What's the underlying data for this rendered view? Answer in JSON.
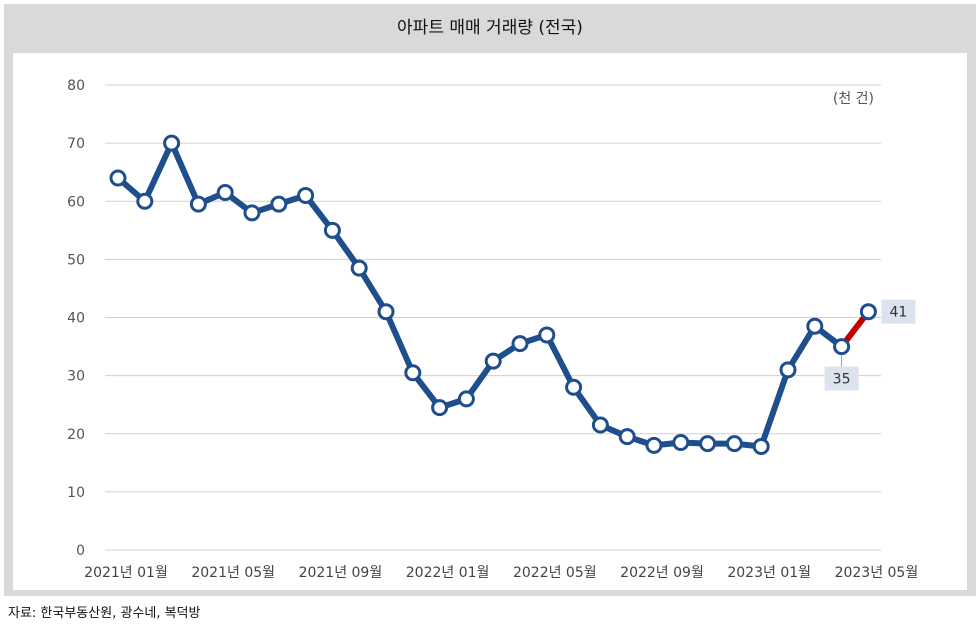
{
  "title": "아파트 매매 거래량 (전국)",
  "source": "자료: 한국부동산원, 광수네, 복덕방",
  "chart_data": {
    "type": "line",
    "title": "아파트 매매 거래량 (전국)",
    "unit_label": "(천 건)",
    "ylim": [
      0,
      80
    ],
    "yticks": [
      0,
      10,
      20,
      30,
      40,
      50,
      60,
      70,
      80
    ],
    "grid": true,
    "x": [
      "2021-01",
      "2021-02",
      "2021-03",
      "2021-04",
      "2021-05",
      "2021-06",
      "2021-07",
      "2021-08",
      "2021-09",
      "2021-10",
      "2021-11",
      "2021-12",
      "2022-01",
      "2022-02",
      "2022-03",
      "2022-04",
      "2022-05",
      "2022-06",
      "2022-07",
      "2022-08",
      "2022-09",
      "2022-10",
      "2022-11",
      "2022-12",
      "2023-01",
      "2023-02",
      "2023-03",
      "2023-04",
      "2023-05"
    ],
    "xtick_labels": [
      "2021년 01월",
      "2021년 05월",
      "2021년 09월",
      "2022년 01월",
      "2022년 05월",
      "2022년 09월",
      "2023년 01월",
      "2023년 05월"
    ],
    "xtick_index": [
      0,
      4,
      8,
      12,
      16,
      20,
      24,
      28
    ],
    "series": [
      {
        "values": [
          64,
          60,
          70,
          59.5,
          61.5,
          58,
          59.5,
          61,
          55,
          48.5,
          41,
          30.5,
          24.5,
          26,
          32.5,
          35.5,
          37,
          28,
          21.5,
          19.5,
          18,
          18.5,
          18.3,
          18.3,
          17.8,
          31,
          38.5,
          35,
          41
        ],
        "color": "#1f4e8c",
        "highlight_last_segment_color": "#c00000"
      }
    ],
    "annotations": [
      {
        "index": 27,
        "text": "35"
      },
      {
        "index": 28,
        "text": "41"
      }
    ]
  }
}
